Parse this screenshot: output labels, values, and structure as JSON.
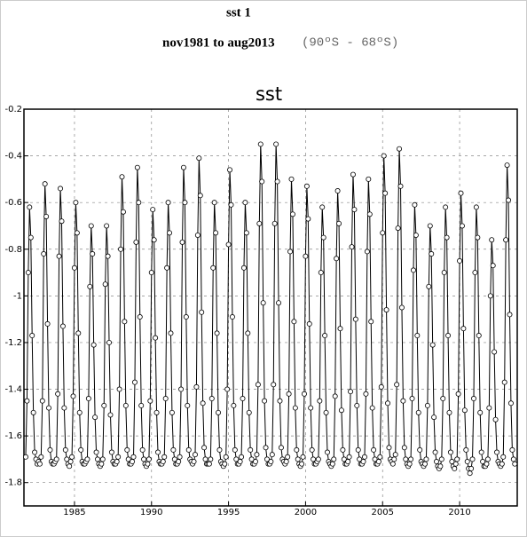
{
  "chart_data": {
    "type": "line",
    "header": "sst 1",
    "period": "nov1981 to aug2013",
    "region": "(90ºS - 68ºS)",
    "title": "sst",
    "xlim": [
      1981.72,
      2013.74
    ],
    "xticks": [
      1985,
      1990,
      1995,
      2000,
      2005,
      2010
    ],
    "ylim": [
      -1.9,
      -0.2
    ],
    "yticks": [
      -0.2,
      -0.4,
      -0.6,
      -0.8,
      -1,
      -1.2,
      -1.4,
      -1.6,
      -1.8
    ],
    "grid": true,
    "series": [
      {
        "color": "#000000",
        "x": [
          1981.833,
          1981.917,
          1982,
          1982.083,
          1982.167,
          1982.25,
          1982.333,
          1982.417,
          1982.5,
          1982.583,
          1982.667,
          1982.75,
          1982.833,
          1982.917,
          1983,
          1983.083,
          1983.167,
          1983.25,
          1983.333,
          1983.417,
          1983.5,
          1983.583,
          1983.667,
          1983.75,
          1983.833,
          1983.917,
          1984,
          1984.083,
          1984.167,
          1984.25,
          1984.333,
          1984.417,
          1984.5,
          1984.583,
          1984.667,
          1984.75,
          1984.833,
          1984.917,
          1985,
          1985.083,
          1985.167,
          1985.25,
          1985.333,
          1985.417,
          1985.5,
          1985.583,
          1985.667,
          1985.75,
          1985.833,
          1985.917,
          1986,
          1986.083,
          1986.167,
          1986.25,
          1986.333,
          1986.417,
          1986.5,
          1986.583,
          1986.667,
          1986.75,
          1986.833,
          1986.917,
          1987,
          1987.083,
          1987.167,
          1987.25,
          1987.333,
          1987.417,
          1987.5,
          1987.583,
          1987.667,
          1987.75,
          1987.833,
          1987.917,
          1988,
          1988.083,
          1988.167,
          1988.25,
          1988.333,
          1988.417,
          1988.5,
          1988.583,
          1988.667,
          1988.75,
          1988.833,
          1988.917,
          1989,
          1989.083,
          1989.167,
          1989.25,
          1989.333,
          1989.417,
          1989.5,
          1989.583,
          1989.667,
          1989.75,
          1989.833,
          1989.917,
          1990,
          1990.083,
          1990.167,
          1990.25,
          1990.333,
          1990.417,
          1990.5,
          1990.583,
          1990.667,
          1990.75,
          1990.833,
          1990.917,
          1991,
          1991.083,
          1991.167,
          1991.25,
          1991.333,
          1991.417,
          1991.5,
          1991.583,
          1991.667,
          1991.75,
          1991.833,
          1991.917,
          1992,
          1992.083,
          1992.167,
          1992.25,
          1992.333,
          1992.417,
          1992.5,
          1992.583,
          1992.667,
          1992.75,
          1992.833,
          1992.917,
          1993,
          1993.083,
          1993.167,
          1993.25,
          1993.333,
          1993.417,
          1993.5,
          1993.583,
          1993.667,
          1993.75,
          1993.833,
          1993.917,
          1994,
          1994.083,
          1994.167,
          1994.25,
          1994.333,
          1994.417,
          1994.5,
          1994.583,
          1994.667,
          1994.75,
          1994.833,
          1994.917,
          1995,
          1995.083,
          1995.167,
          1995.25,
          1995.333,
          1995.417,
          1995.5,
          1995.583,
          1995.667,
          1995.75,
          1995.833,
          1995.917,
          1996,
          1996.083,
          1996.167,
          1996.25,
          1996.333,
          1996.417,
          1996.5,
          1996.583,
          1996.667,
          1996.75,
          1996.833,
          1996.917,
          1997,
          1997.083,
          1997.167,
          1997.25,
          1997.333,
          1997.417,
          1997.5,
          1997.583,
          1997.667,
          1997.75,
          1997.833,
          1997.917,
          1998,
          1998.083,
          1998.167,
          1998.25,
          1998.333,
          1998.417,
          1998.5,
          1998.583,
          1998.667,
          1998.75,
          1998.833,
          1998.917,
          1999,
          1999.083,
          1999.167,
          1999.25,
          1999.333,
          1999.417,
          1999.5,
          1999.583,
          1999.667,
          1999.75,
          1999.833,
          1999.917,
          2000,
          2000.083,
          2000.167,
          2000.25,
          2000.333,
          2000.417,
          2000.5,
          2000.583,
          2000.667,
          2000.75,
          2000.833,
          2000.917,
          2001,
          2001.083,
          2001.167,
          2001.25,
          2001.333,
          2001.417,
          2001.5,
          2001.583,
          2001.667,
          2001.75,
          2001.833,
          2001.917,
          2002,
          2002.083,
          2002.167,
          2002.25,
          2002.333,
          2002.417,
          2002.5,
          2002.583,
          2002.667,
          2002.75,
          2002.833,
          2002.917,
          2003,
          2003.083,
          2003.167,
          2003.25,
          2003.333,
          2003.417,
          2003.5,
          2003.583,
          2003.667,
          2003.75,
          2003.833,
          2003.917,
          2004,
          2004.083,
          2004.167,
          2004.25,
          2004.333,
          2004.417,
          2004.5,
          2004.583,
          2004.667,
          2004.75,
          2004.833,
          2004.917,
          2005,
          2005.083,
          2005.167,
          2005.25,
          2005.333,
          2005.417,
          2005.5,
          2005.583,
          2005.667,
          2005.75,
          2005.833,
          2005.917,
          2006,
          2006.083,
          2006.167,
          2006.25,
          2006.333,
          2006.417,
          2006.5,
          2006.583,
          2006.667,
          2006.75,
          2006.833,
          2006.917,
          2007,
          2007.083,
          2007.167,
          2007.25,
          2007.333,
          2007.417,
          2007.5,
          2007.583,
          2007.667,
          2007.75,
          2007.833,
          2007.917,
          2008,
          2008.083,
          2008.167,
          2008.25,
          2008.333,
          2008.417,
          2008.5,
          2008.583,
          2008.667,
          2008.75,
          2008.833,
          2008.917,
          2009,
          2009.083,
          2009.167,
          2009.25,
          2009.333,
          2009.417,
          2009.5,
          2009.583,
          2009.667,
          2009.75,
          2009.833,
          2009.917,
          2010,
          2010.083,
          2010.167,
          2010.25,
          2010.333,
          2010.417,
          2010.5,
          2010.583,
          2010.667,
          2010.75,
          2010.833,
          2010.917,
          2011,
          2011.083,
          2011.167,
          2011.25,
          2011.333,
          2011.417,
          2011.5,
          2011.583,
          2011.667,
          2011.75,
          2011.833,
          2011.917,
          2012,
          2012.083,
          2012.167,
          2012.25,
          2012.333,
          2012.417,
          2012.5,
          2012.583,
          2012.667,
          2012.75,
          2012.833,
          2012.917,
          2013,
          2013.083,
          2013.167,
          2013.25,
          2013.333,
          2013.417,
          2013.5,
          2013.583
        ],
        "values": [
          -1.69,
          -1.45,
          -0.9,
          -0.62,
          -0.75,
          -1.17,
          -1.5,
          -1.67,
          -1.7,
          -1.72,
          -1.71,
          -1.72,
          -1.69,
          -1.45,
          -0.82,
          -0.52,
          -0.66,
          -1.12,
          -1.48,
          -1.66,
          -1.71,
          -1.72,
          -1.72,
          -1.71,
          -1.7,
          -1.42,
          -0.83,
          -0.54,
          -0.68,
          -1.13,
          -1.48,
          -1.66,
          -1.7,
          -1.72,
          -1.73,
          -1.71,
          -1.69,
          -1.43,
          -0.88,
          -0.6,
          -0.73,
          -1.16,
          -1.5,
          -1.66,
          -1.71,
          -1.72,
          -1.72,
          -1.71,
          -1.7,
          -1.44,
          -0.96,
          -0.7,
          -0.82,
          -1.21,
          -1.52,
          -1.67,
          -1.7,
          -1.72,
          -1.73,
          -1.72,
          -1.7,
          -1.47,
          -0.95,
          -0.7,
          -0.83,
          -1.2,
          -1.51,
          -1.67,
          -1.71,
          -1.72,
          -1.72,
          -1.71,
          -1.69,
          -1.4,
          -0.8,
          -0.49,
          -0.64,
          -1.11,
          -1.47,
          -1.66,
          -1.7,
          -1.72,
          -1.72,
          -1.71,
          -1.69,
          -1.37,
          -0.77,
          -0.45,
          -0.6,
          -1.09,
          -1.47,
          -1.66,
          -1.7,
          -1.72,
          -1.73,
          -1.72,
          -1.7,
          -1.45,
          -0.9,
          -0.63,
          -0.76,
          -1.18,
          -1.5,
          -1.67,
          -1.71,
          -1.72,
          -1.72,
          -1.71,
          -1.69,
          -1.44,
          -0.88,
          -0.6,
          -0.73,
          -1.16,
          -1.5,
          -1.66,
          -1.7,
          -1.72,
          -1.72,
          -1.71,
          -1.69,
          -1.4,
          -0.77,
          -0.45,
          -0.6,
          -1.09,
          -1.47,
          -1.66,
          -1.7,
          -1.71,
          -1.72,
          -1.71,
          -1.68,
          -1.39,
          -0.74,
          -0.41,
          -0.57,
          -1.07,
          -1.46,
          -1.65,
          -1.7,
          -1.72,
          -1.72,
          -1.72,
          -1.7,
          -1.44,
          -0.88,
          -0.6,
          -0.73,
          -1.16,
          -1.5,
          -1.66,
          -1.71,
          -1.72,
          -1.73,
          -1.72,
          -1.69,
          -1.4,
          -0.78,
          -0.46,
          -0.61,
          -1.09,
          -1.47,
          -1.66,
          -1.7,
          -1.72,
          -1.72,
          -1.71,
          -1.69,
          -1.44,
          -0.88,
          -0.6,
          -0.73,
          -1.16,
          -1.5,
          -1.66,
          -1.7,
          -1.72,
          -1.72,
          -1.71,
          -1.68,
          -1.38,
          -0.69,
          -0.35,
          -0.51,
          -1.03,
          -1.45,
          -1.65,
          -1.7,
          -1.72,
          -1.72,
          -1.71,
          -1.68,
          -1.38,
          -0.69,
          -0.35,
          -0.51,
          -1.03,
          -1.45,
          -1.65,
          -1.7,
          -1.71,
          -1.72,
          -1.71,
          -1.69,
          -1.42,
          -0.81,
          -0.5,
          -0.65,
          -1.11,
          -1.48,
          -1.66,
          -1.7,
          -1.72,
          -1.73,
          -1.72,
          -1.69,
          -1.42,
          -0.83,
          -0.53,
          -0.67,
          -1.12,
          -1.48,
          -1.66,
          -1.7,
          -1.72,
          -1.72,
          -1.71,
          -1.7,
          -1.45,
          -0.9,
          -0.62,
          -0.75,
          -1.17,
          -1.5,
          -1.67,
          -1.71,
          -1.72,
          -1.73,
          -1.72,
          -1.7,
          -1.43,
          -0.84,
          -0.55,
          -0.69,
          -1.14,
          -1.49,
          -1.66,
          -1.7,
          -1.72,
          -1.72,
          -1.71,
          -1.69,
          -1.41,
          -0.79,
          -0.48,
          -0.63,
          -1.1,
          -1.47,
          -1.66,
          -1.7,
          -1.72,
          -1.72,
          -1.71,
          -1.69,
          -1.42,
          -0.81,
          -0.5,
          -0.65,
          -1.11,
          -1.48,
          -1.66,
          -1.7,
          -1.72,
          -1.72,
          -1.71,
          -1.69,
          -1.39,
          -0.73,
          -0.4,
          -0.56,
          -1.06,
          -1.46,
          -1.65,
          -1.7,
          -1.71,
          -1.72,
          -1.7,
          -1.68,
          -1.38,
          -0.71,
          -0.37,
          -0.53,
          -1.05,
          -1.45,
          -1.65,
          -1.7,
          -1.72,
          -1.73,
          -1.72,
          -1.7,
          -1.44,
          -0.89,
          -0.61,
          -0.74,
          -1.17,
          -1.5,
          -1.66,
          -1.71,
          -1.72,
          -1.73,
          -1.72,
          -1.7,
          -1.47,
          -0.96,
          -0.7,
          -0.82,
          -1.21,
          -1.52,
          -1.67,
          -1.71,
          -1.73,
          -1.74,
          -1.73,
          -1.7,
          -1.44,
          -0.9,
          -0.62,
          -0.75,
          -1.17,
          -1.5,
          -1.67,
          -1.71,
          -1.73,
          -1.74,
          -1.72,
          -1.7,
          -1.42,
          -0.85,
          -0.56,
          -0.7,
          -1.14,
          -1.49,
          -1.66,
          -1.71,
          -1.74,
          -1.76,
          -1.74,
          -1.7,
          -1.44,
          -0.9,
          -0.62,
          -0.75,
          -1.17,
          -1.5,
          -1.67,
          -1.71,
          -1.73,
          -1.73,
          -1.72,
          -1.7,
          -1.48,
          -1.0,
          -0.76,
          -0.87,
          -1.24,
          -1.53,
          -1.67,
          -1.71,
          -1.72,
          -1.73,
          -1.72,
          -1.69,
          -1.37,
          -0.76,
          -0.44,
          -0.59,
          -1.08,
          -1.46,
          -1.66,
          -1.7,
          -1.72
        ]
      }
    ]
  }
}
